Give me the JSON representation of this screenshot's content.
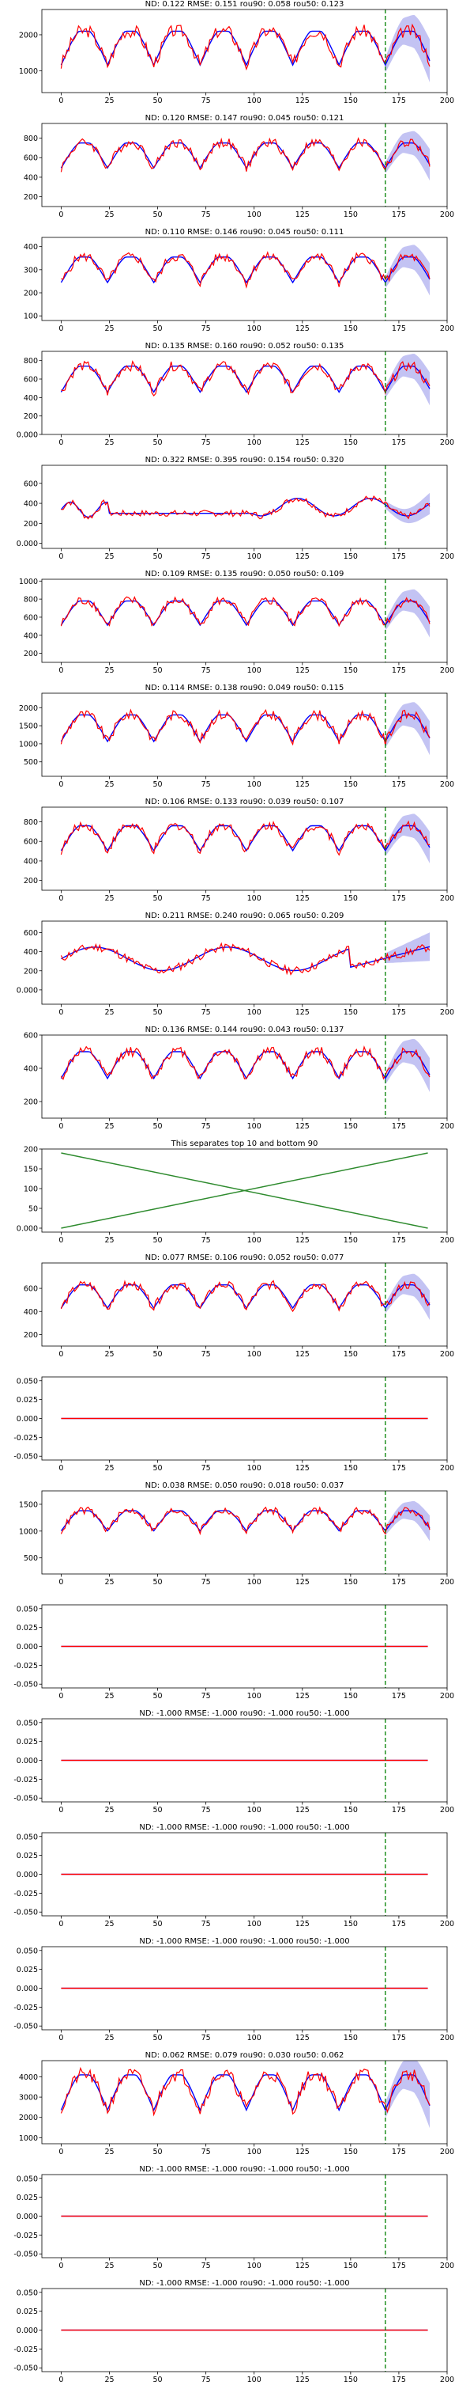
{
  "figure": {
    "background": "#ffffff"
  },
  "colors": {
    "target": "#ff0000",
    "prediction": "#0000ff",
    "band": "#aaaaee",
    "split": "#008000",
    "diag": "#2e8b2e"
  },
  "x_ticks": [
    0,
    25,
    50,
    75,
    100,
    125,
    150,
    175,
    200
  ],
  "x_lim": [
    -10,
    200
  ],
  "split_x": 168,
  "chart_data": [
    {
      "type": "line",
      "title": "ND:  0.122 RMSE:  0.151 rou90:  0.058 rou50:  0.123",
      "ylim": [
        400,
        2700
      ],
      "yticks": [
        1000,
        2000
      ],
      "base": 700,
      "amp": 1400,
      "p": 0,
      "style": "weekly"
    },
    {
      "type": "line",
      "title": "ND:  0.120 RMSE:  0.147 rou90:  0.045 rou50:  0.121",
      "ylim": [
        100,
        950
      ],
      "yticks": [
        200,
        400,
        600,
        800
      ],
      "base": 370,
      "amp": 380,
      "p": 1,
      "style": "weekly"
    },
    {
      "type": "line",
      "title": "ND:  0.110 RMSE:  0.146 rou90:  0.045 rou50:  0.111",
      "ylim": [
        80,
        440
      ],
      "yticks": [
        100,
        200,
        300,
        400
      ],
      "base": 190,
      "amp": 165,
      "p": 2,
      "style": "weekly"
    },
    {
      "type": "line",
      "title": "ND:  0.135 RMSE:  0.160 rou90:  0.052 rou50:  0.135",
      "ylim": [
        0,
        900
      ],
      "yticks": [
        0,
        200,
        400,
        600,
        800
      ],
      "base": 320,
      "amp": 420,
      "p": 3,
      "style": "weekly"
    },
    {
      "type": "line",
      "title": "ND:  0.322 RMSE:  0.395 rou90:  0.154 rou50:  0.320",
      "ylim": [
        -50,
        780
      ],
      "yticks": [
        0,
        200,
        400,
        600
      ],
      "base": 250,
      "amp": 250,
      "p": 4,
      "style": "irregular"
    },
    {
      "type": "line",
      "title": "ND:  0.109 RMSE:  0.135 rou90:  0.050 rou50:  0.109",
      "ylim": [
        100,
        1020
      ],
      "yticks": [
        200,
        400,
        600,
        800,
        1000
      ],
      "base": 380,
      "amp": 400,
      "p": 5,
      "style": "weekly"
    },
    {
      "type": "line",
      "title": "ND:  0.114 RMSE:  0.138 rou90:  0.049 rou50:  0.115",
      "ylim": [
        100,
        2400
      ],
      "yticks": [
        500,
        1000,
        1500,
        2000
      ],
      "base": 700,
      "amp": 1100,
      "p": 6,
      "style": "weekly"
    },
    {
      "type": "line",
      "title": "ND:  0.106 RMSE:  0.133 rou90:  0.039 rou50:  0.107",
      "ylim": [
        100,
        950
      ],
      "yticks": [
        200,
        400,
        600,
        800
      ],
      "base": 380,
      "amp": 380,
      "p": 7,
      "style": "weekly"
    },
    {
      "type": "line",
      "title": "ND:  0.211 RMSE:  0.240 rou90:  0.065 rou50:  0.209",
      "ylim": [
        -150,
        720
      ],
      "yticks": [
        0,
        200,
        400,
        600
      ],
      "base": 150,
      "amp": 350,
      "p": 8,
      "style": "irregular2"
    },
    {
      "type": "line",
      "title": "ND:  0.136 RMSE:  0.144 rou90:  0.043 rou50:  0.137",
      "ylim": [
        100,
        600
      ],
      "yticks": [
        200,
        400,
        600
      ],
      "base": 260,
      "amp": 240,
      "p": 9,
      "style": "weekly"
    },
    {
      "type": "cross",
      "title": "This separates top 10 and bottom 90",
      "ylim": [
        -10,
        200
      ],
      "yticks": [
        0,
        50,
        100,
        150,
        200
      ]
    },
    {
      "type": "line",
      "title": "ND:  0.077 RMSE:  0.106 rou90:  0.052 rou50:  0.077",
      "ylim": [
        100,
        820
      ],
      "yticks": [
        200,
        400,
        600
      ],
      "base": 330,
      "amp": 300,
      "p": 11,
      "style": "weekly"
    },
    {
      "type": "flat",
      "title": "",
      "ylim": [
        -0.055,
        0.055
      ],
      "yticks": [
        -0.05,
        -0.025,
        0.0,
        0.025,
        0.05
      ]
    },
    {
      "type": "line",
      "title": "ND:  0.038 RMSE:  0.050 rou90:  0.018 rou50:  0.037",
      "ylim": [
        200,
        1750
      ],
      "yticks": [
        500,
        1000,
        1500
      ],
      "base": 820,
      "amp": 560,
      "p": 13,
      "style": "weekly"
    },
    {
      "type": "flat",
      "title": "",
      "ylim": [
        -0.055,
        0.055
      ],
      "yticks": [
        -0.05,
        -0.025,
        0.0,
        0.025,
        0.05
      ]
    },
    {
      "type": "flat",
      "title": "ND: -1.000 RMSE: -1.000 rou90: -1.000 rou50: -1.000",
      "ylim": [
        -0.055,
        0.055
      ],
      "yticks": [
        -0.05,
        -0.025,
        0.0,
        0.025,
        0.05
      ]
    },
    {
      "type": "flat",
      "title": "ND: -1.000 RMSE: -1.000 rou90: -1.000 rou50: -1.000",
      "ylim": [
        -0.055,
        0.055
      ],
      "yticks": [
        -0.05,
        -0.025,
        0.0,
        0.025,
        0.05
      ]
    },
    {
      "type": "flat",
      "title": "ND: -1.000 RMSE: -1.000 rou90: -1.000 rou50: -1.000",
      "ylim": [
        -0.055,
        0.055
      ],
      "yticks": [
        -0.05,
        -0.025,
        0.0,
        0.025,
        0.05
      ]
    },
    {
      "type": "line",
      "title": "ND:  0.062 RMSE:  0.079 rou90:  0.030 rou50:  0.062",
      "ylim": [
        700,
        4800
      ],
      "yticks": [
        1000,
        2000,
        3000,
        4000
      ],
      "base": 1500,
      "amp": 2600,
      "p": 18,
      "style": "weekly"
    },
    {
      "type": "flat",
      "title": "ND: -1.000 RMSE: -1.000 rou90: -1.000 rou50: -1.000",
      "ylim": [
        -0.055,
        0.055
      ],
      "yticks": [
        -0.05,
        -0.025,
        0.0,
        0.025,
        0.05
      ]
    },
    {
      "type": "flat",
      "title": "ND: -1.000 RMSE: -1.000 rou90: -1.000 rou50: -1.000",
      "ylim": [
        -0.055,
        0.055
      ],
      "yticks": [
        -0.05,
        -0.025,
        0.0,
        0.025,
        0.05
      ]
    }
  ]
}
